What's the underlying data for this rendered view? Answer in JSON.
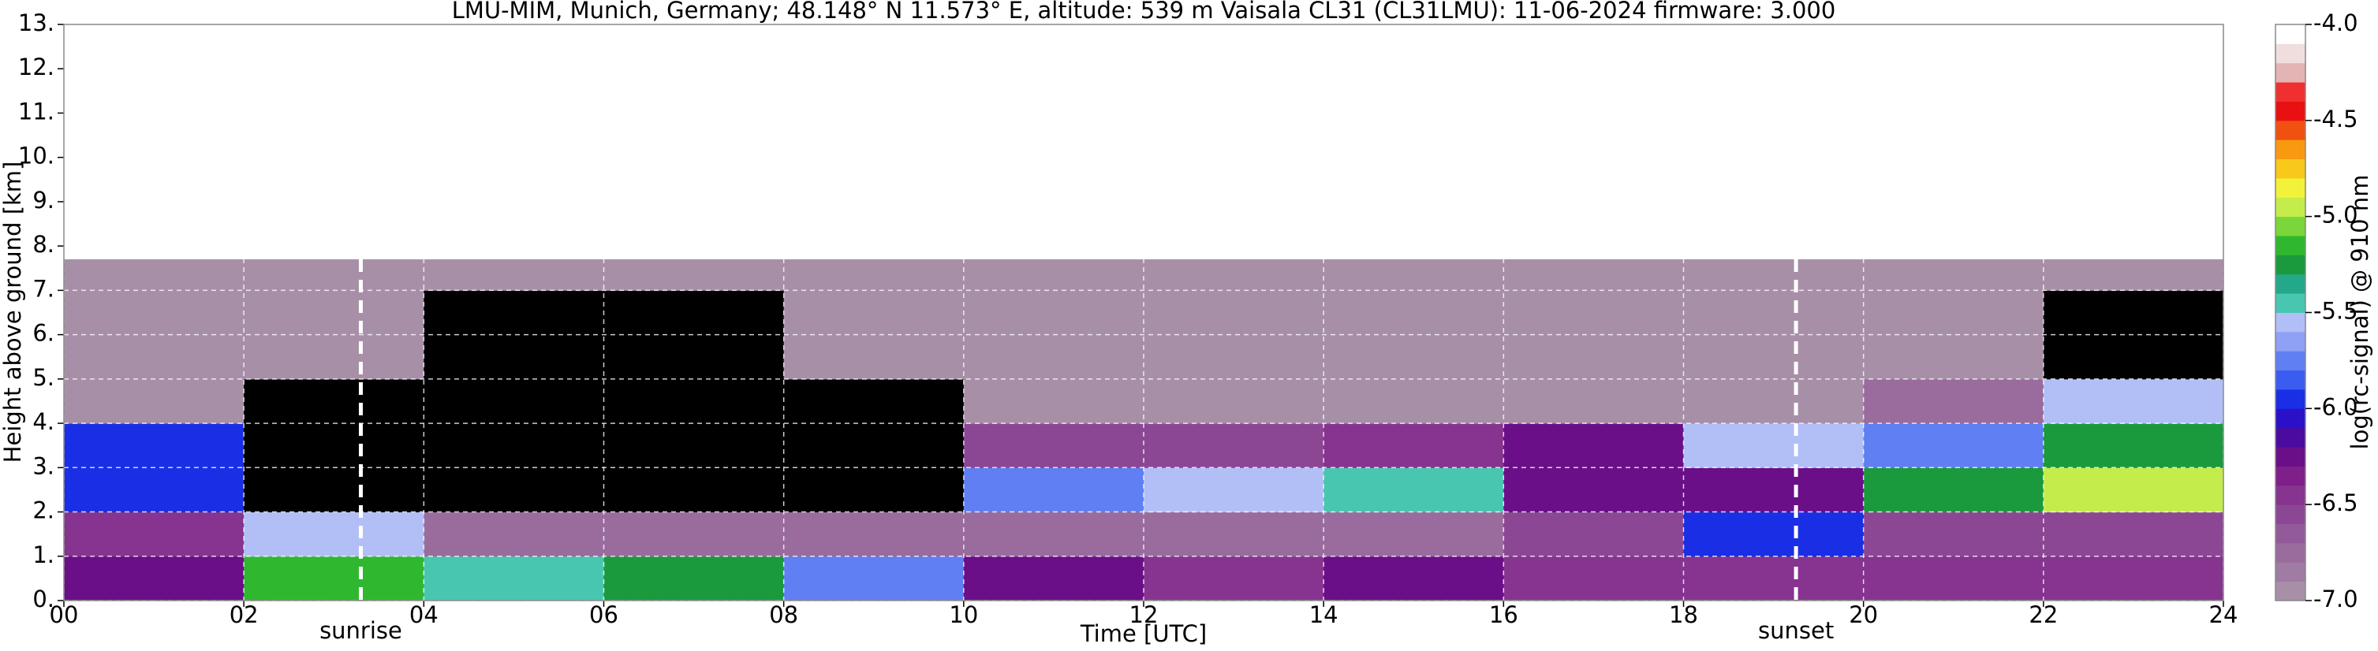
{
  "chart_data": {
    "type": "heatmap",
    "title": "LMU-MIM, Munich, Germany; 48.148° N 11.573° E, altitude: 539 m    Vaisala CL31 (CL31LMU): 11-06-2024    firmware: 3.000",
    "xlabel": "Time [UTC]",
    "ylabel": "Height above ground [km]",
    "xlim": [
      0,
      24
    ],
    "xticks": [
      {
        "value": 0,
        "label": "00"
      },
      {
        "value": 2,
        "label": "02"
      },
      {
        "value": 4,
        "label": "04"
      },
      {
        "value": 6,
        "label": "06"
      },
      {
        "value": 8,
        "label": "08"
      },
      10,
      12,
      14,
      16,
      18,
      20,
      22,
      24
    ],
    "ylim": [
      0,
      13
    ],
    "yticks": [
      {
        "value": 0,
        "label": "0."
      },
      {
        "value": 1,
        "label": "1."
      },
      {
        "value": 2,
        "label": "2."
      },
      {
        "value": 3,
        "label": "3."
      },
      {
        "value": 4,
        "label": "4."
      },
      {
        "value": 5,
        "label": "5."
      },
      {
        "value": 6,
        "label": "6."
      },
      {
        "value": 7,
        "label": "7."
      },
      {
        "value": 8,
        "label": "8."
      },
      {
        "value": 9,
        "label": "9."
      },
      {
        "value": 10,
        "label": "10."
      },
      {
        "value": 11,
        "label": "11."
      },
      {
        "value": 12,
        "label": "12."
      },
      {
        "value": 13,
        "label": "13."
      }
    ],
    "grid": true,
    "grid_color": "#ffffff",
    "xbins": [
      0,
      2,
      4,
      6,
      8,
      10,
      12,
      14,
      16,
      18,
      20,
      22,
      24
    ],
    "ybins": [
      0,
      1,
      2,
      3,
      4,
      5,
      6,
      7,
      7.7
    ],
    "z": [
      [
        -6.3,
        -5.2,
        -5.4,
        -5.3,
        -5.8,
        -6.2,
        -6.4,
        -6.3,
        -6.4,
        -6.5,
        -6.5,
        -6.5
      ],
      [
        -6.4,
        -5.6,
        -6.8,
        -6.8,
        -6.8,
        -6.8,
        -6.8,
        -6.7,
        -6.6,
        -6.0,
        -6.6,
        -6.6
      ],
      [
        -6.0,
        -7.2,
        -7.3,
        -7.3,
        -7.2,
        -5.8,
        -5.6,
        -5.5,
        -6.2,
        -6.2,
        -5.3,
        -5.0
      ],
      [
        -5.9,
        -7.2,
        -7.3,
        -7.3,
        -7.3,
        -6.6,
        -6.6,
        -6.4,
        -6.3,
        -5.6,
        -5.8,
        -5.3
      ],
      [
        -6.9,
        -7.1,
        -7.2,
        -7.2,
        -7.1,
        -6.9,
        -6.9,
        -6.9,
        -6.9,
        -6.9,
        -6.7,
        -5.6
      ],
      [
        -6.9,
        -7.0,
        -7.1,
        -7.1,
        -7.0,
        -6.9,
        -6.9,
        -6.9,
        -6.9,
        -6.9,
        -7.0,
        -7.1
      ],
      [
        -6.9,
        -7.0,
        -7.1,
        -7.1,
        -7.0,
        -6.9,
        -6.9,
        -6.9,
        -6.9,
        -6.9,
        -7.0,
        -7.1
      ],
      [
        -6.9,
        -7.0,
        -7.0,
        -7.0,
        -7.0,
        -6.9,
        -6.9,
        -6.9,
        -6.9,
        -6.9,
        -7.0,
        -7.0
      ]
    ],
    "annotations": [
      {
        "text": "sunrise",
        "x": 3.3
      },
      {
        "text": "sunset",
        "x": 19.25
      }
    ],
    "colorbar": {
      "label": "log(rc-signal) @ 910 nm",
      "clim": [
        -7,
        -4
      ],
      "ticks": [
        {
          "value": -7,
          "label": "-7.0"
        },
        {
          "value": -6.5,
          "label": "-6.5"
        },
        {
          "value": -6,
          "label": "-6.0"
        },
        {
          "value": -5.5,
          "label": "-5.5"
        },
        {
          "value": -5,
          "label": "-5.0"
        },
        {
          "value": -4.5,
          "label": "-4.5"
        },
        {
          "value": -4,
          "label": "-4.0"
        }
      ],
      "under_color": "#000000",
      "colors": [
        "#a88fa8",
        "#a07ba3",
        "#9a6c9e",
        "#935a99",
        "#8c4794",
        "#86348f",
        "#7f1f8a",
        "#6a0f88",
        "#4b0aa0",
        "#2a10c8",
        "#1a2ee6",
        "#3a5cf0",
        "#5f7ff2",
        "#8ea1f4",
        "#b1bff6",
        "#48c6b0",
        "#23a88a",
        "#1a9a3c",
        "#2fb82f",
        "#7ad63a",
        "#c4ec4a",
        "#f2f23a",
        "#f8c81a",
        "#f89a10",
        "#f05010",
        "#e81010",
        "#f03030",
        "#e4b4b4",
        "#f0dede",
        "#ffffff"
      ]
    }
  }
}
